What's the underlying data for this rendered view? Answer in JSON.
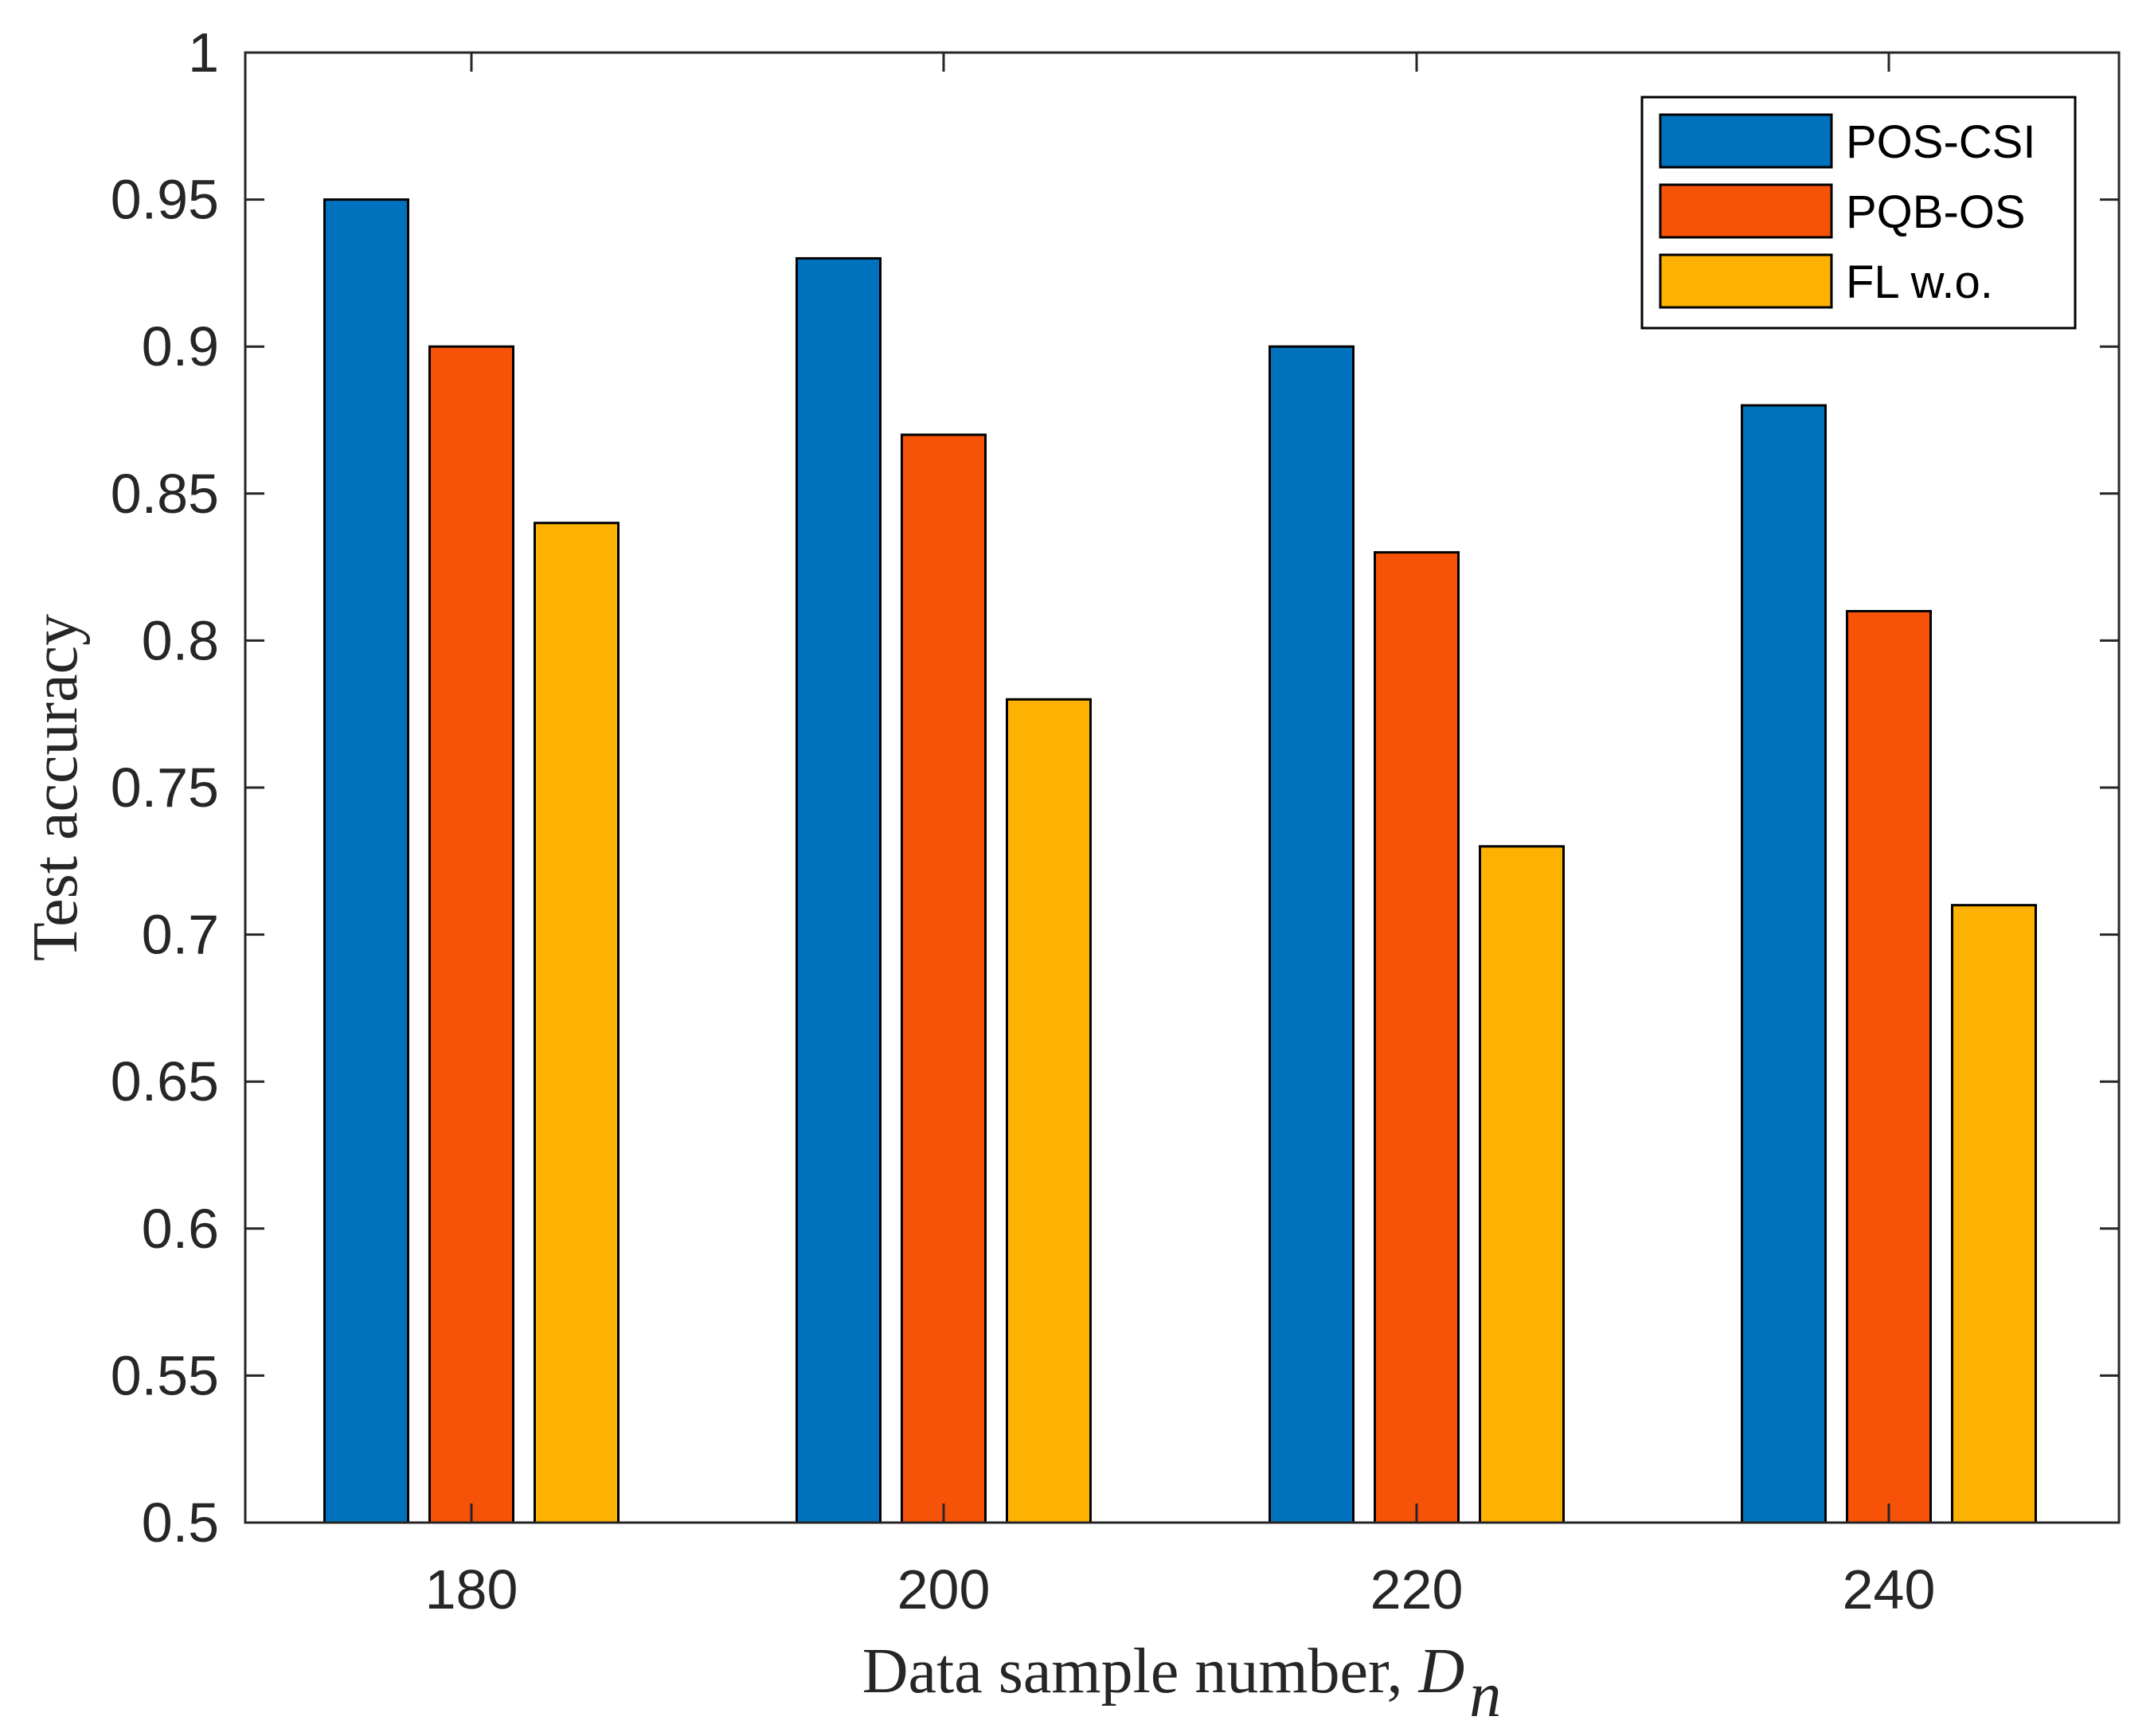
{
  "chart_data": {
    "type": "bar",
    "title": "",
    "xlabel": "Data sample number, ",
    "xlabel_var": "D",
    "xlabel_sub": "n",
    "ylabel": "Test accuracy",
    "ylim": [
      0.5,
      1
    ],
    "yticks": [
      "0.5",
      "0.55",
      "0.6",
      "0.65",
      "0.7",
      "0.75",
      "0.8",
      "0.85",
      "0.9",
      "0.95",
      "1"
    ],
    "categories": [
      "180",
      "200",
      "220",
      "240"
    ],
    "series": [
      {
        "name": "POS-CSI",
        "color": "#0072BD",
        "values": [
          0.95,
          0.93,
          0.9,
          0.88
        ]
      },
      {
        "name": "PQB-OS",
        "color": "#F75308",
        "values": [
          0.9,
          0.87,
          0.83,
          0.81
        ]
      },
      {
        "name": "FL w.o.",
        "color": "#FDB100",
        "values": [
          0.84,
          0.78,
          0.73,
          0.71
        ]
      }
    ],
    "legend_position": "top-right",
    "grid": false
  }
}
